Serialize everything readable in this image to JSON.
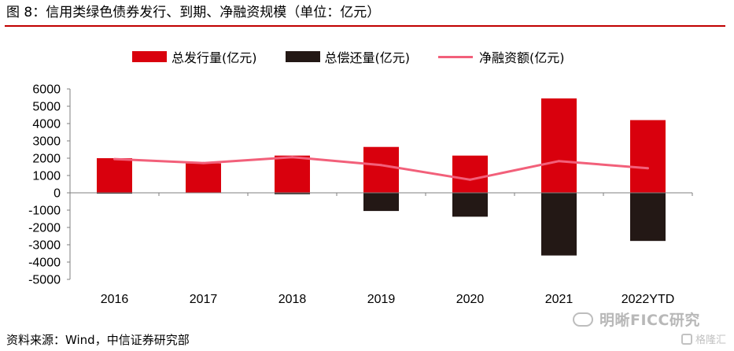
{
  "figure": {
    "title": "图 8：信用类绿色债券发行、到期、净融资规模（单位：亿元）",
    "source": "资料来源：Wind，中信证券研究部",
    "watermark": "明晰FICC研究",
    "watermark2": "格隆汇"
  },
  "colors": {
    "issuance": "#d9000d",
    "repayment": "#231815",
    "net_financing": "#f2607a",
    "title_rule": "#c00000"
  },
  "chart_data": {
    "type": "bar",
    "categories": [
      "2016",
      "2017",
      "2018",
      "2019",
      "2020",
      "2021",
      "2022YTD"
    ],
    "series": [
      {
        "name": "总发行量(亿元)",
        "type": "bar",
        "values": [
          2000,
          1700,
          2150,
          2650,
          2150,
          5450,
          4200
        ]
      },
      {
        "name": "总偿还量(亿元)",
        "type": "bar",
        "values": [
          -50,
          -20,
          -80,
          -1050,
          -1380,
          -3620,
          -2780
        ]
      },
      {
        "name": "净融资额(亿元)",
        "type": "line",
        "values": [
          1950,
          1720,
          2060,
          1600,
          760,
          1830,
          1420
        ]
      }
    ],
    "ylim": [
      -5000,
      6000
    ],
    "yticks": [
      6000,
      5000,
      4000,
      3000,
      2000,
      1000,
      0,
      -1000,
      -2000,
      -3000,
      -4000,
      -5000
    ],
    "legend_position": "top",
    "grid": false
  }
}
